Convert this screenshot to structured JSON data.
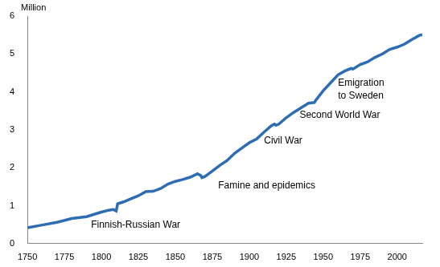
{
  "chart_data": {
    "type": "line",
    "y_label": "Million",
    "color": "#2e6db4",
    "grid": false,
    "x": [
      1750,
      1760,
      1770,
      1780,
      1790,
      1800,
      1805,
      1808,
      1810,
      1811,
      1815,
      1820,
      1825,
      1830,
      1835,
      1840,
      1845,
      1850,
      1855,
      1860,
      1865,
      1866,
      1867,
      1868,
      1870,
      1875,
      1880,
      1885,
      1890,
      1895,
      1900,
      1905,
      1910,
      1915,
      1917,
      1918,
      1920,
      1925,
      1930,
      1935,
      1940,
      1944,
      1945,
      1950,
      1955,
      1960,
      1965,
      1969,
      1970,
      1975,
      1980,
      1985,
      1990,
      1995,
      2000,
      2005,
      2010,
      2015,
      2017
    ],
    "values": [
      0.42,
      0.49,
      0.56,
      0.66,
      0.71,
      0.83,
      0.88,
      0.9,
      0.86,
      1.05,
      1.1,
      1.18,
      1.26,
      1.37,
      1.38,
      1.45,
      1.57,
      1.64,
      1.69,
      1.75,
      1.84,
      1.82,
      1.8,
      1.74,
      1.77,
      1.91,
      2.06,
      2.19,
      2.38,
      2.52,
      2.66,
      2.76,
      2.94,
      3.11,
      3.15,
      3.12,
      3.15,
      3.32,
      3.46,
      3.58,
      3.7,
      3.72,
      3.78,
      4.03,
      4.24,
      4.45,
      4.56,
      4.62,
      4.6,
      4.72,
      4.79,
      4.91,
      5.0,
      5.12,
      5.18,
      5.26,
      5.38,
      5.49,
      5.51
    ],
    "xlim": [
      1750,
      2017
    ],
    "xticks": [
      1750,
      1775,
      1800,
      1825,
      1850,
      1875,
      1900,
      1925,
      1950,
      1975,
      2000
    ],
    "ylim": [
      0,
      6
    ],
    "yticks": [
      0,
      1,
      2,
      3,
      4,
      5,
      6
    ],
    "annotations": [
      {
        "text": [
          "Finnish-Russian War"
        ],
        "x": 1793,
        "y": 0.49
      },
      {
        "text": [
          "Famine and epidemics"
        ],
        "x": 1879,
        "y": 1.52
      },
      {
        "text": [
          "Civil War"
        ],
        "x": 1910,
        "y": 2.71
      },
      {
        "text": [
          "Second World War"
        ],
        "x": 1934,
        "y": 3.38
      },
      {
        "text": [
          "Emigration",
          "to Sweden"
        ],
        "x": 1960,
        "y": 4.06
      }
    ]
  }
}
